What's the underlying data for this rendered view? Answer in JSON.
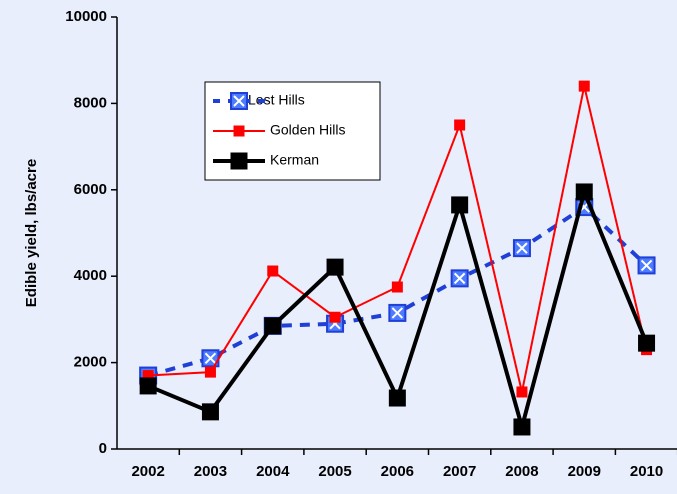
{
  "chart_data": {
    "type": "line",
    "y_label": "Edible yield, lbs/acre",
    "categories": [
      "2002",
      "2003",
      "2004",
      "2005",
      "2006",
      "2007",
      "2008",
      "2009",
      "2010"
    ],
    "series": [
      {
        "name": "Lost Hills",
        "color": "#1f3fd6",
        "values": [
          1700,
          2100,
          2850,
          2900,
          3150,
          3950,
          4650,
          5600,
          4250
        ]
      },
      {
        "name": "Golden Hills",
        "color": "#ff0000",
        "values": [
          1700,
          1780,
          4120,
          3050,
          3750,
          7500,
          1320,
          8400,
          2300
        ]
      },
      {
        "name": "Kerman",
        "color": "#000000",
        "values": [
          1460,
          860,
          2850,
          4210,
          1180,
          5650,
          510,
          5950,
          2450
        ]
      }
    ],
    "ylim": [
      0,
      10000
    ],
    "yticks": [
      0,
      2000,
      4000,
      6000,
      8000,
      10000
    ]
  }
}
